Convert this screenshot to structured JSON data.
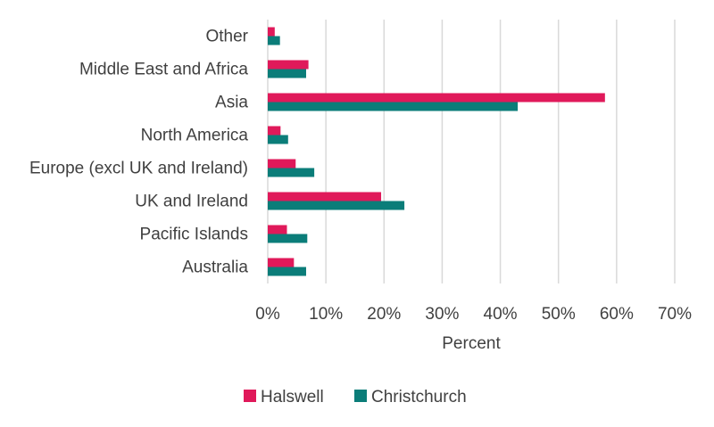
{
  "chart_data": {
    "type": "bar",
    "orientation": "horizontal",
    "categories": [
      "Other",
      "Middle East and Africa",
      "Asia",
      "North America",
      "Europe (excl UK and Ireland)",
      "UK and Ireland",
      "Pacific Islands",
      "Australia"
    ],
    "series": [
      {
        "name": "Halswell",
        "color": "#e0195a",
        "values": [
          1.2,
          7.0,
          58.0,
          2.2,
          4.8,
          19.5,
          3.3,
          4.5
        ]
      },
      {
        "name": "Christchurch",
        "color": "#0b7d79",
        "values": [
          2.1,
          6.6,
          43.0,
          3.5,
          8.0,
          23.5,
          6.8,
          6.6
        ]
      }
    ],
    "xlabel": "Percent",
    "ylabel": "",
    "title": "",
    "xlim": [
      0,
      70
    ],
    "x_ticks": [
      "0%",
      "10%",
      "20%",
      "30%",
      "40%",
      "50%",
      "60%",
      "70%"
    ],
    "grid": "vertical",
    "legend_position": "bottom"
  }
}
